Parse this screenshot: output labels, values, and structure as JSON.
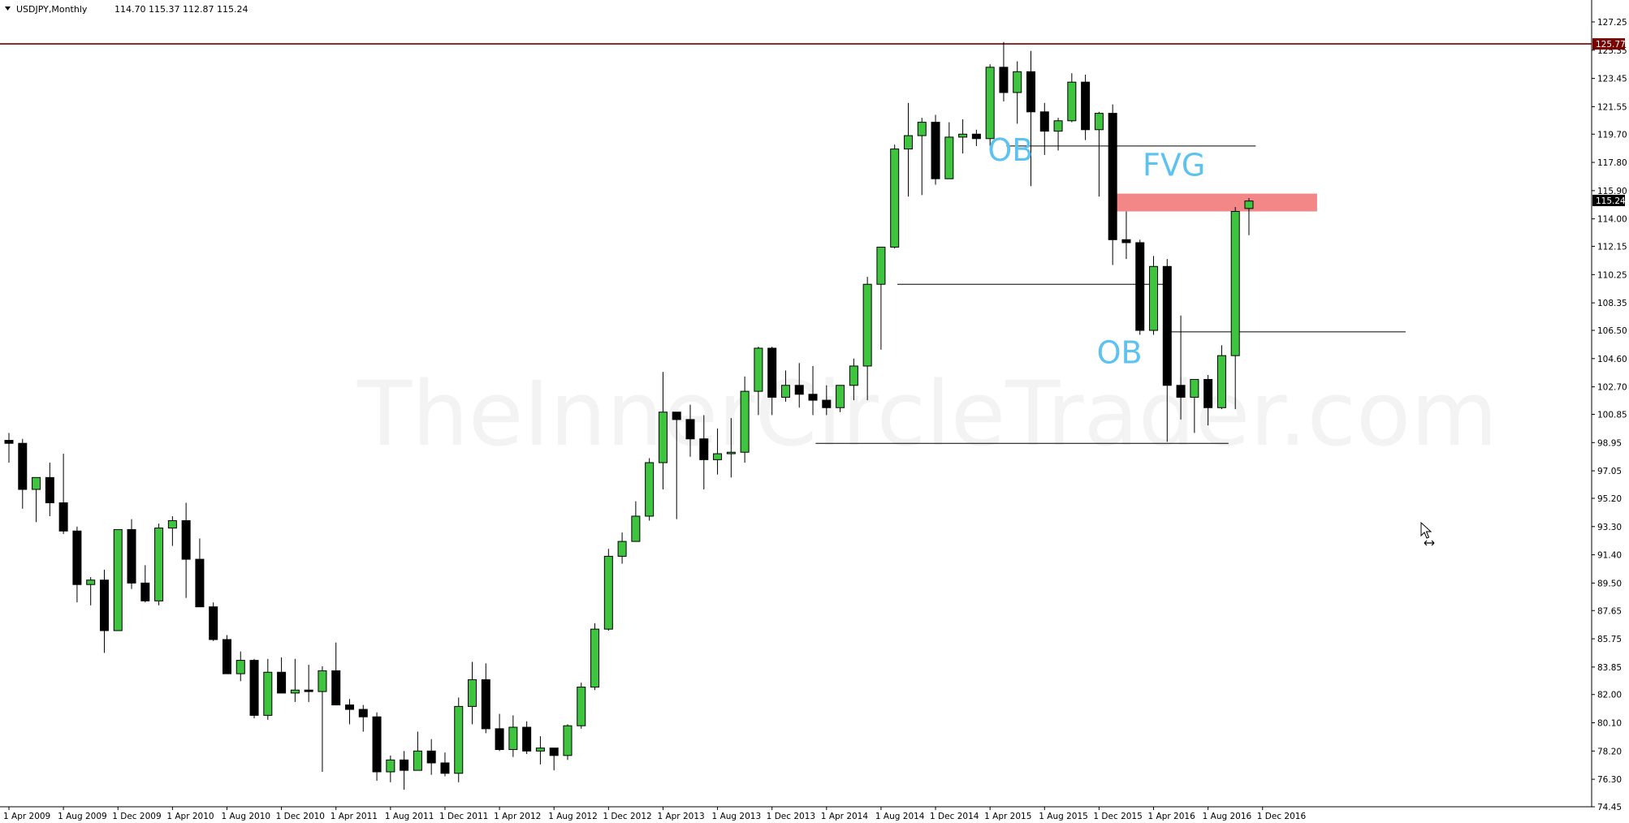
{
  "header": {
    "symbol": "USDJPY,Monthly",
    "ohlc": "114.70 115.37 112.87 115.24"
  },
  "watermark": "TheInnerCircleTrader.com",
  "colors": {
    "bull": "#3fc43f",
    "bear": "#000000",
    "zone": "#f28080",
    "annotation": "#5ec2f0",
    "top_line": "#6b0000",
    "current_price_bg": "#000000"
  },
  "chart_data": {
    "type": "candlestick",
    "symbol": "USDJPY",
    "timeframe": "Monthly",
    "ylim": [
      74.45,
      127.7
    ],
    "y_ticks": [
      "127.25",
      "125.35",
      "123.45",
      "121.55",
      "119.70",
      "117.80",
      "115.90",
      "114.00",
      "112.15",
      "110.25",
      "108.35",
      "106.50",
      "104.60",
      "102.70",
      "100.85",
      "98.95",
      "97.05",
      "95.20",
      "93.30",
      "91.40",
      "89.50",
      "87.65",
      "85.75",
      "83.85",
      "82.00",
      "80.10",
      "78.20",
      "76.30",
      "74.45"
    ],
    "x_ticks": [
      {
        "label": "1 Apr 2009",
        "index": 0
      },
      {
        "label": "1 Aug 2009",
        "index": 4
      },
      {
        "label": "1 Dec 2009",
        "index": 8
      },
      {
        "label": "1 Apr 2010",
        "index": 12
      },
      {
        "label": "1 Aug 2010",
        "index": 16
      },
      {
        "label": "1 Dec 2010",
        "index": 20
      },
      {
        "label": "1 Apr 2011",
        "index": 24
      },
      {
        "label": "1 Aug 2011",
        "index": 28
      },
      {
        "label": "1 Dec 2011",
        "index": 32
      },
      {
        "label": "1 Apr 2012",
        "index": 36
      },
      {
        "label": "1 Aug 2012",
        "index": 40
      },
      {
        "label": "1 Dec 2012",
        "index": 44
      },
      {
        "label": "1 Apr 2013",
        "index": 48
      },
      {
        "label": "1 Aug 2013",
        "index": 52
      },
      {
        "label": "1 Dec 2013",
        "index": 56
      },
      {
        "label": "1 Apr 2014",
        "index": 60
      },
      {
        "label": "1 Aug 2014",
        "index": 64
      },
      {
        "label": "1 Dec 2014",
        "index": 68
      },
      {
        "label": "1 Apr 2015",
        "index": 72
      },
      {
        "label": "1 Aug 2015",
        "index": 76
      },
      {
        "label": "1 Dec 2015",
        "index": 80
      },
      {
        "label": "1 Apr 2016",
        "index": 84
      },
      {
        "label": "1 Aug 2016",
        "index": 88
      },
      {
        "label": "1 Dec 2016",
        "index": 92
      }
    ],
    "candles": [
      [
        99.1,
        99.6,
        97.6,
        98.9
      ],
      [
        98.9,
        99.2,
        94.5,
        95.8
      ],
      [
        95.8,
        96.6,
        93.6,
        96.6
      ],
      [
        96.6,
        97.6,
        94.0,
        94.9
      ],
      [
        94.9,
        98.2,
        92.8,
        93.0
      ],
      [
        93.0,
        93.3,
        88.2,
        89.4
      ],
      [
        89.4,
        89.9,
        88.0,
        89.7
      ],
      [
        89.7,
        90.4,
        84.8,
        86.3
      ],
      [
        86.3,
        93.1,
        86.3,
        93.1
      ],
      [
        93.1,
        93.8,
        89.1,
        89.5
      ],
      [
        89.5,
        90.7,
        88.2,
        88.3
      ],
      [
        88.3,
        93.5,
        88.0,
        93.2
      ],
      [
        93.2,
        94.0,
        92.0,
        93.7
      ],
      [
        93.7,
        94.9,
        88.5,
        91.1
      ],
      [
        91.1,
        92.5,
        87.9,
        87.9
      ],
      [
        87.9,
        88.2,
        85.6,
        85.7
      ],
      [
        85.7,
        86.0,
        83.4,
        83.4
      ],
      [
        83.4,
        84.9,
        82.9,
        84.3
      ],
      [
        84.3,
        84.4,
        80.4,
        80.6
      ],
      [
        80.6,
        84.4,
        80.3,
        83.5
      ],
      [
        83.5,
        84.5,
        82.1,
        82.1
      ],
      [
        82.1,
        84.4,
        81.5,
        82.3
      ],
      [
        82.3,
        84.0,
        81.5,
        82.2
      ],
      [
        82.2,
        83.9,
        76.8,
        83.6
      ],
      [
        83.6,
        85.5,
        81.3,
        81.3
      ],
      [
        81.3,
        81.7,
        80.0,
        81.0
      ],
      [
        81.0,
        81.3,
        79.5,
        80.5
      ],
      [
        80.5,
        80.8,
        76.2,
        76.8
      ],
      [
        76.8,
        77.9,
        76.1,
        77.6
      ],
      [
        77.6,
        78.2,
        75.6,
        76.9
      ],
      [
        76.9,
        79.5,
        76.9,
        78.2
      ],
      [
        78.2,
        79.0,
        76.6,
        77.4
      ],
      [
        77.4,
        78.1,
        76.5,
        76.7
      ],
      [
        76.7,
        81.8,
        76.1,
        81.2
      ],
      [
        81.2,
        84.2,
        80.0,
        83.0
      ],
      [
        83.0,
        84.1,
        79.4,
        79.7
      ],
      [
        79.7,
        80.7,
        78.2,
        78.3
      ],
      [
        78.3,
        80.6,
        77.8,
        79.8
      ],
      [
        79.8,
        80.2,
        78.0,
        78.2
      ],
      [
        78.2,
        79.2,
        77.3,
        78.4
      ],
      [
        78.4,
        78.4,
        76.9,
        77.9
      ],
      [
        77.9,
        80.0,
        77.6,
        79.9
      ],
      [
        79.9,
        82.8,
        79.7,
        82.5
      ],
      [
        82.5,
        86.8,
        82.3,
        86.4
      ],
      [
        86.4,
        91.8,
        86.3,
        91.3
      ],
      [
        91.3,
        92.9,
        90.8,
        92.3
      ],
      [
        92.3,
        95.0,
        92.3,
        94.0
      ],
      [
        94.0,
        97.9,
        93.7,
        97.6
      ],
      [
        97.6,
        103.7,
        95.8,
        101.0
      ],
      [
        101.0,
        101.0,
        93.8,
        100.5
      ],
      [
        100.5,
        101.5,
        98.0,
        99.2
      ],
      [
        99.2,
        100.8,
        95.8,
        97.8
      ],
      [
        97.8,
        99.9,
        96.8,
        98.2
      ],
      [
        98.2,
        100.6,
        96.6,
        98.3
      ],
      [
        98.3,
        103.4,
        97.6,
        102.4
      ],
      [
        102.4,
        105.4,
        100.8,
        105.3
      ],
      [
        105.3,
        105.4,
        100.8,
        102.0
      ],
      [
        102.0,
        103.8,
        101.7,
        102.8
      ],
      [
        102.8,
        104.3,
        101.3,
        102.2
      ],
      [
        102.2,
        104.1,
        100.8,
        101.8
      ],
      [
        101.8,
        102.8,
        100.8,
        101.3
      ],
      [
        101.3,
        102.7,
        101.0,
        102.8
      ],
      [
        102.8,
        104.6,
        101.8,
        104.1
      ],
      [
        104.1,
        110.1,
        101.8,
        109.6
      ],
      [
        109.6,
        112.1,
        105.2,
        112.1
      ],
      [
        112.1,
        119.0,
        112.0,
        118.7
      ],
      [
        118.7,
        121.8,
        115.5,
        119.6
      ],
      [
        119.6,
        120.8,
        115.6,
        120.5
      ],
      [
        120.5,
        121.0,
        116.3,
        116.7
      ],
      [
        116.7,
        120.5,
        116.7,
        119.5
      ],
      [
        119.5,
        120.7,
        118.4,
        119.7
      ],
      [
        119.7,
        120.0,
        118.9,
        119.4
      ],
      [
        119.4,
        124.4,
        118.9,
        124.2
      ],
      [
        124.2,
        125.9,
        121.9,
        122.5
      ],
      [
        122.5,
        124.6,
        120.4,
        123.9
      ],
      [
        123.9,
        125.3,
        116.2,
        121.2
      ],
      [
        121.2,
        121.8,
        118.3,
        119.9
      ],
      [
        119.9,
        120.8,
        118.6,
        120.6
      ],
      [
        120.6,
        123.8,
        120.5,
        123.2
      ],
      [
        123.2,
        123.7,
        119.3,
        120.0
      ],
      [
        120.0,
        121.2,
        115.5,
        121.1
      ],
      [
        121.1,
        121.7,
        110.9,
        112.6
      ],
      [
        112.6,
        114.5,
        111.3,
        112.4
      ],
      [
        112.4,
        112.6,
        106.2,
        106.5
      ],
      [
        106.5,
        111.5,
        106.2,
        110.8
      ],
      [
        110.8,
        111.3,
        99.0,
        102.8
      ],
      [
        102.8,
        107.5,
        100.5,
        102.0
      ],
      [
        102.0,
        103.2,
        99.6,
        103.2
      ],
      [
        103.2,
        103.5,
        100.1,
        101.3
      ],
      [
        101.3,
        105.5,
        101.2,
        104.8
      ],
      [
        104.8,
        114.8,
        101.2,
        114.5
      ],
      [
        114.7,
        115.4,
        112.9,
        115.2
      ]
    ],
    "annotations": [
      {
        "text": "OB",
        "price": 117.9,
        "index": 73.5
      },
      {
        "text": "FVG",
        "price": 116.9,
        "index": 85.5
      },
      {
        "text": "OB",
        "price": 104.3,
        "index": 81.5
      }
    ],
    "fvg_zone": {
      "price_top": 115.7,
      "price_bottom": 114.5,
      "from_index": 81,
      "to_index": 96
    },
    "horizontal_lines": [
      {
        "price": 118.9,
        "from_index": 73.2,
        "to_index": 91.5
      },
      {
        "price": 109.6,
        "from_index": 65.2,
        "to_index": 84.7
      },
      {
        "price": 106.4,
        "from_index": 84.7,
        "to_index": 102.5
      },
      {
        "price": 98.9,
        "from_index": 59.2,
        "to_index": 89.5
      }
    ],
    "top_level": {
      "price": 125.77,
      "label": "125.77"
    },
    "current_price": {
      "price": 115.24,
      "label": "115.24"
    }
  }
}
